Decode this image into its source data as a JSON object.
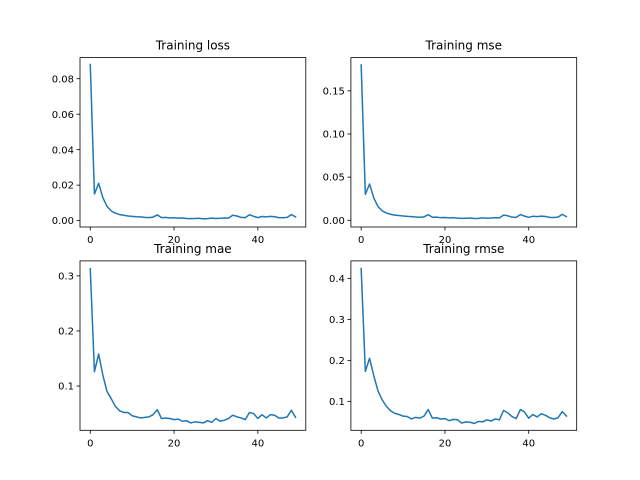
{
  "chart_data": [
    {
      "type": "line",
      "title": "Training loss",
      "xlabel": "",
      "ylabel": "",
      "xlim": [
        -2.45,
        51.45
      ],
      "ylim": [
        -0.0036,
        0.0919
      ],
      "xticks": [
        0,
        20,
        40
      ],
      "xtick_labels": [
        "0",
        "20",
        "40"
      ],
      "yticks": [
        0.0,
        0.02,
        0.04,
        0.06,
        0.08
      ],
      "ytick_labels": [
        "0.00",
        "0.02",
        "0.04",
        "0.06",
        "0.08"
      ],
      "grid": false,
      "series": [
        {
          "color": "#1f77b4",
          "x": [
            0,
            1,
            2,
            3,
            4,
            5,
            6,
            7,
            8,
            9,
            10,
            11,
            12,
            13,
            14,
            15,
            16,
            17,
            18,
            19,
            20,
            21,
            22,
            23,
            24,
            25,
            26,
            27,
            28,
            29,
            30,
            31,
            32,
            33,
            34,
            35,
            36,
            37,
            38,
            39,
            40,
            41,
            42,
            43,
            44,
            45,
            46,
            47,
            48,
            49
          ],
          "values": [
            0.088,
            0.015,
            0.021,
            0.013,
            0.008,
            0.0055,
            0.0042,
            0.0034,
            0.003,
            0.0026,
            0.0024,
            0.0022,
            0.0021,
            0.0018,
            0.0017,
            0.002,
            0.0032,
            0.0017,
            0.0018,
            0.0015,
            0.0016,
            0.0014,
            0.0015,
            0.0012,
            0.0011,
            0.0012,
            0.0013,
            0.001,
            0.0011,
            0.0014,
            0.0012,
            0.0013,
            0.0015,
            0.0014,
            0.003,
            0.0026,
            0.0018,
            0.0017,
            0.0033,
            0.0024,
            0.0017,
            0.0023,
            0.0021,
            0.0024,
            0.0022,
            0.0017,
            0.0016,
            0.0018,
            0.0034,
            0.0021
          ]
        }
      ]
    },
    {
      "type": "line",
      "title": "Training mse",
      "xlabel": "",
      "ylabel": "",
      "xlim": [
        -2.45,
        51.45
      ],
      "ylim": [
        -0.0078,
        0.1885
      ],
      "xticks": [
        0,
        20,
        40
      ],
      "xtick_labels": [
        "0",
        "20",
        "40"
      ],
      "yticks": [
        0.0,
        0.05,
        0.1,
        0.15
      ],
      "ytick_labels": [
        "0.00",
        "0.05",
        "0.10",
        "0.15"
      ],
      "grid": false,
      "series": [
        {
          "color": "#1f77b4",
          "x": [
            0,
            1,
            2,
            3,
            4,
            5,
            6,
            7,
            8,
            9,
            10,
            11,
            12,
            13,
            14,
            15,
            16,
            17,
            18,
            19,
            20,
            21,
            22,
            23,
            24,
            25,
            26,
            27,
            28,
            29,
            30,
            31,
            32,
            33,
            34,
            35,
            36,
            37,
            38,
            39,
            40,
            41,
            42,
            43,
            44,
            45,
            46,
            47,
            48,
            49
          ],
          "values": [
            0.18,
            0.03,
            0.042,
            0.026,
            0.016,
            0.011,
            0.0085,
            0.007,
            0.006,
            0.0055,
            0.005,
            0.0045,
            0.0042,
            0.0038,
            0.0035,
            0.004,
            0.0065,
            0.0035,
            0.0037,
            0.003,
            0.0032,
            0.0028,
            0.003,
            0.0025,
            0.0022,
            0.0024,
            0.0026,
            0.002,
            0.0022,
            0.0028,
            0.0024,
            0.0026,
            0.003,
            0.0028,
            0.006,
            0.0052,
            0.0036,
            0.0034,
            0.0066,
            0.0048,
            0.0034,
            0.0046,
            0.0042,
            0.0048,
            0.0044,
            0.0034,
            0.0032,
            0.0036,
            0.0068,
            0.0042
          ]
        }
      ]
    },
    {
      "type": "line",
      "title": "Training mae",
      "xlabel": "",
      "ylabel": "",
      "xlim": [
        -2.45,
        51.45
      ],
      "ylim": [
        0.0196,
        0.3272
      ],
      "xticks": [
        0,
        20,
        40
      ],
      "xtick_labels": [
        "0",
        "20",
        "40"
      ],
      "yticks": [
        0.1,
        0.2,
        0.3
      ],
      "ytick_labels": [
        "0.1",
        "0.2",
        "0.3"
      ],
      "grid": false,
      "series": [
        {
          "color": "#1f77b4",
          "x": [
            0,
            1,
            2,
            3,
            4,
            5,
            6,
            7,
            8,
            9,
            10,
            11,
            12,
            13,
            14,
            15,
            16,
            17,
            18,
            19,
            20,
            21,
            22,
            23,
            24,
            25,
            26,
            27,
            28,
            29,
            30,
            31,
            32,
            33,
            34,
            35,
            36,
            37,
            38,
            39,
            40,
            41,
            42,
            43,
            44,
            45,
            46,
            47,
            48,
            49
          ],
          "values": [
            0.313,
            0.126,
            0.158,
            0.12,
            0.09,
            0.077,
            0.063,
            0.055,
            0.052,
            0.052,
            0.046,
            0.044,
            0.042,
            0.043,
            0.044,
            0.048,
            0.057,
            0.041,
            0.042,
            0.041,
            0.039,
            0.04,
            0.036,
            0.037,
            0.033,
            0.035,
            0.034,
            0.033,
            0.037,
            0.034,
            0.041,
            0.036,
            0.038,
            0.041,
            0.047,
            0.044,
            0.042,
            0.039,
            0.052,
            0.05,
            0.041,
            0.048,
            0.042,
            0.048,
            0.047,
            0.042,
            0.042,
            0.044,
            0.056,
            0.043
          ]
        }
      ]
    },
    {
      "type": "line",
      "title": "Training rmse",
      "xlabel": "",
      "ylabel": "",
      "xlim": [
        -2.45,
        51.45
      ],
      "ylim": [
        0.0294,
        0.4426
      ],
      "xticks": [
        0,
        20,
        40
      ],
      "xtick_labels": [
        "0",
        "20",
        "40"
      ],
      "yticks": [
        0.1,
        0.2,
        0.3,
        0.4
      ],
      "ytick_labels": [
        "0.1",
        "0.2",
        "0.3",
        "0.4"
      ],
      "grid": false,
      "series": [
        {
          "color": "#1f77b4",
          "x": [
            0,
            1,
            2,
            3,
            4,
            5,
            6,
            7,
            8,
            9,
            10,
            11,
            12,
            13,
            14,
            15,
            16,
            17,
            18,
            19,
            20,
            21,
            22,
            23,
            24,
            25,
            26,
            27,
            28,
            29,
            30,
            31,
            32,
            33,
            34,
            35,
            36,
            37,
            38,
            39,
            40,
            41,
            42,
            43,
            44,
            45,
            46,
            47,
            48,
            49
          ],
          "values": [
            0.424,
            0.173,
            0.205,
            0.163,
            0.126,
            0.104,
            0.088,
            0.077,
            0.071,
            0.068,
            0.064,
            0.063,
            0.057,
            0.061,
            0.059,
            0.064,
            0.08,
            0.059,
            0.06,
            0.057,
            0.058,
            0.053,
            0.056,
            0.055,
            0.047,
            0.05,
            0.049,
            0.046,
            0.051,
            0.05,
            0.055,
            0.052,
            0.057,
            0.055,
            0.078,
            0.072,
            0.063,
            0.058,
            0.08,
            0.074,
            0.059,
            0.068,
            0.062,
            0.07,
            0.066,
            0.06,
            0.057,
            0.06,
            0.075,
            0.064
          ]
        }
      ]
    }
  ]
}
